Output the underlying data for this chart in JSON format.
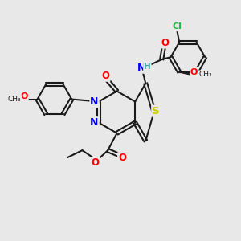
{
  "bg_color": "#e8e8e8",
  "bond_color": "#1a1a1a",
  "bond_width": 1.5,
  "dbl_sep": 0.07,
  "atom_colors": {
    "N": "#0000ff",
    "O": "#ff0000",
    "S": "#cccc00",
    "Cl": "#22bb44",
    "H": "#44aaaa",
    "C": "#1a1a1a"
  }
}
